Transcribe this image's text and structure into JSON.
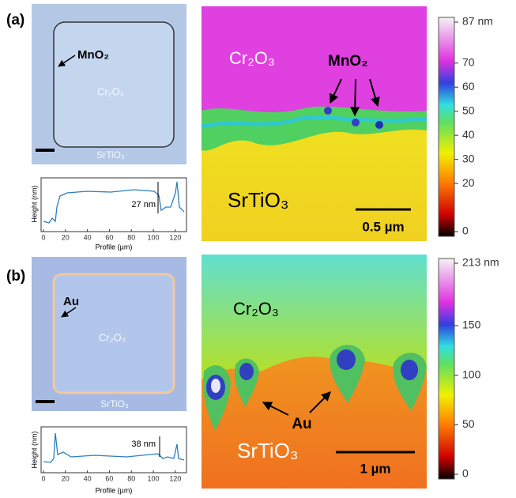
{
  "panels": [
    {
      "label": "(a)",
      "optical": {
        "callout": "MnO₂",
        "center": "Cr₂O₃",
        "bottom": "SrTiO₃"
      },
      "profile": {
        "y_label": "Height (nm)",
        "x_label": "Profile (µm)",
        "xlim": [
          0,
          128
        ],
        "xticks": [
          0,
          20,
          40,
          60,
          80,
          100,
          120
        ],
        "step_label": "27 nm"
      },
      "map": {
        "top": "Cr₂O₃",
        "callout": "MnO₂",
        "bottom": "SrTiO₃",
        "scale_bar": "0.5 µm"
      },
      "colorbar": {
        "lim": [
          0,
          87
        ],
        "ticks": [
          0,
          20,
          30,
          40,
          50,
          60,
          70,
          {
            "value": 87,
            "label": "87 nm"
          }
        ]
      }
    },
    {
      "label": "(b)",
      "optical": {
        "callout": "Au",
        "center": "Cr₂O₃",
        "bottom": "SrTiO₃"
      },
      "profile": {
        "y_label": "Height (nm)",
        "x_label": "Profile (µm)",
        "xlim": [
          0,
          128
        ],
        "xticks": [
          0,
          20,
          40,
          60,
          80,
          100,
          120
        ],
        "step_label": "38 nm"
      },
      "map": {
        "top": "Cr₂O₃",
        "callout": "Au",
        "bottom": "SrTiO₃",
        "scale_bar": "1 µm"
      },
      "colorbar": {
        "lim": [
          0,
          213
        ],
        "ticks": [
          0,
          50,
          100,
          150,
          {
            "value": 213,
            "label": "213 nm"
          }
        ]
      }
    }
  ]
}
